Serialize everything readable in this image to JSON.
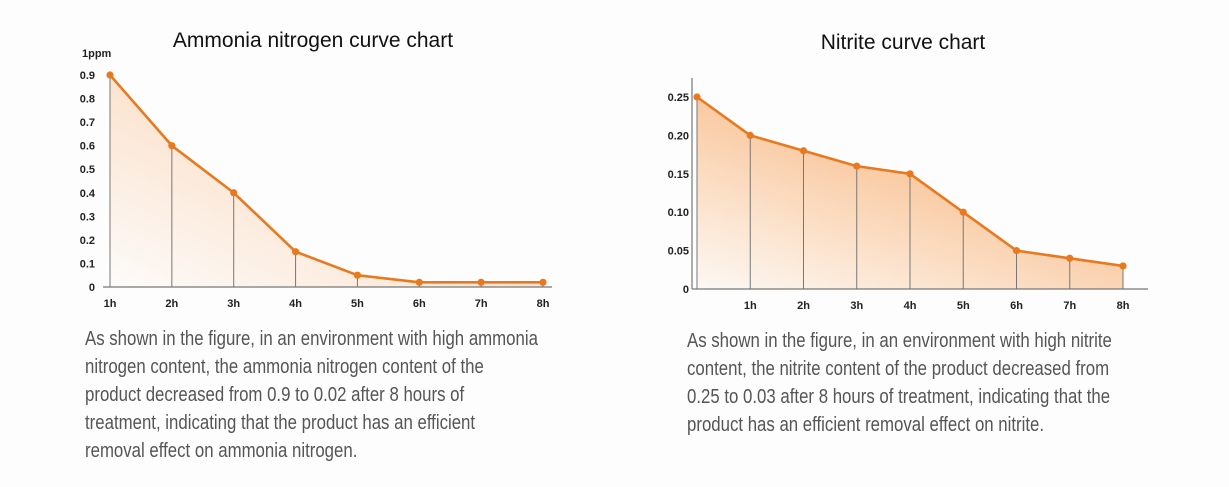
{
  "colors": {
    "line": "#e8791f",
    "fill": "#f7a25a",
    "axis": "#777777",
    "text": "#555555"
  },
  "chart_data": [
    {
      "type": "line",
      "title": "Ammonia nitrogen curve chart",
      "ylabel": "1ppm",
      "xlabel": "",
      "categories": [
        "1h",
        "2h",
        "3h",
        "4h",
        "5h",
        "6h",
        "7h",
        "8h"
      ],
      "values": [
        0.9,
        0.6,
        0.4,
        0.15,
        0.05,
        0.02,
        0.02,
        0.02
      ],
      "ylim": [
        0,
        0.9
      ],
      "yticks": [
        "0",
        "0.1",
        "0.2",
        "0.3",
        "0.4",
        "0.5",
        "0.6",
        "0.7",
        "0.8",
        "0.9"
      ],
      "grid": false
    },
    {
      "type": "line",
      "title": "Nitrite curve chart",
      "ylabel": "",
      "xlabel": "",
      "categories": [
        "",
        "1h",
        "2h",
        "3h",
        "4h",
        "5h",
        "6h",
        "7h",
        "8h"
      ],
      "values": [
        0.25,
        0.2,
        0.18,
        0.16,
        0.15,
        0.1,
        0.05,
        0.04,
        0.03
      ],
      "ylim": [
        0,
        0.25
      ],
      "yticks": [
        "0",
        "0.05",
        "0.10",
        "0.15",
        "0.20",
        "0.25"
      ],
      "grid": false
    }
  ],
  "descriptions": [
    {
      "lines": [
        "As shown in the figure, in an environment with high ammonia",
        "nitrogen content, the ammonia nitrogen content of the",
        "product decreased from 0.9 to 0.02 after 8 hours of",
        "treatment, indicating that the product has an efficient",
        "removal effect on ammonia nitrogen."
      ]
    },
    {
      "lines": [
        "As shown in the figure, in an environment with high nitrite",
        "content, the nitrite content of the product decreased from",
        "0.25 to 0.03 after 8 hours of treatment, indicating that the",
        "product has an efficient removal effect on nitrite."
      ]
    }
  ]
}
